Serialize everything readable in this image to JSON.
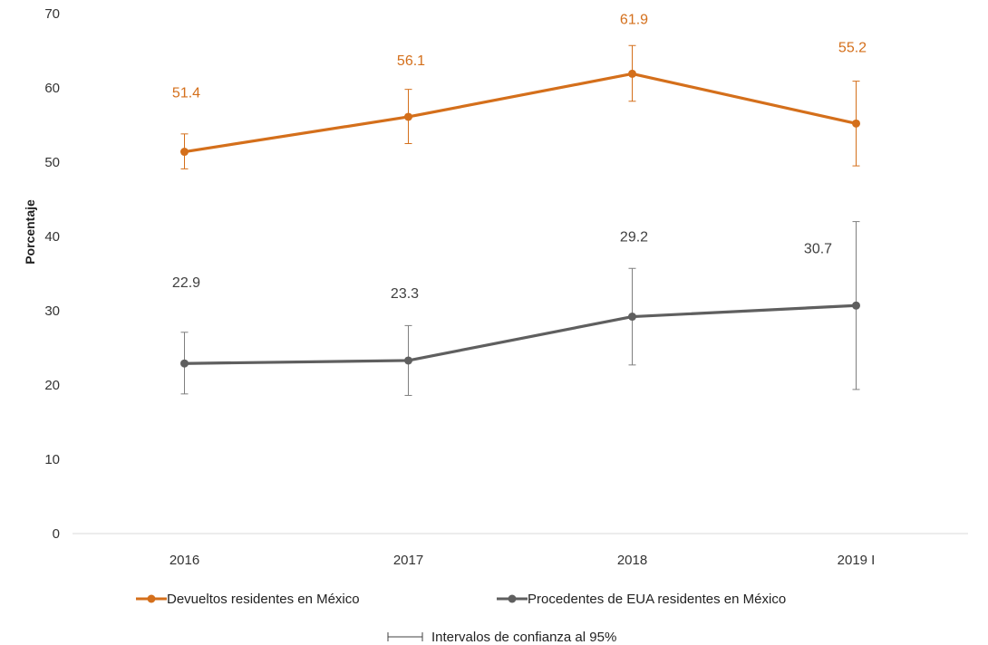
{
  "chart_data": {
    "type": "line",
    "categories": [
      "2016",
      "2017",
      "2018",
      "2019 I"
    ],
    "ylabel": "Porcentaje",
    "xlabel": "",
    "ylim": [
      0,
      70
    ],
    "yticks": [
      0,
      10,
      20,
      30,
      40,
      50,
      60,
      70
    ],
    "grid": false,
    "legend_position": "bottom",
    "series": [
      {
        "name": "Devueltos residentes en México",
        "color": "#d46f1b",
        "values": [
          51.4,
          56.1,
          61.9,
          55.2
        ],
        "labels": [
          "51.4",
          "56.1",
          "61.9",
          "55.2"
        ],
        "ci_lower": [
          49.1,
          52.5,
          58.2,
          49.5
        ],
        "ci_upper": [
          53.8,
          59.8,
          65.7,
          60.9
        ]
      },
      {
        "name": "Procedentes de EUA residentes en México",
        "color": "#5f5f5f",
        "values": [
          22.9,
          23.3,
          29.2,
          30.7
        ],
        "labels": [
          "22.9",
          "23.3",
          "29.2",
          "30.7"
        ],
        "ci_lower": [
          18.8,
          18.6,
          22.7,
          19.4
        ],
        "ci_upper": [
          27.1,
          28.0,
          35.7,
          42.0
        ]
      }
    ],
    "ci_legend": "Intervalos de confianza al 95%",
    "error_bar_color": "#7f7f7f"
  }
}
